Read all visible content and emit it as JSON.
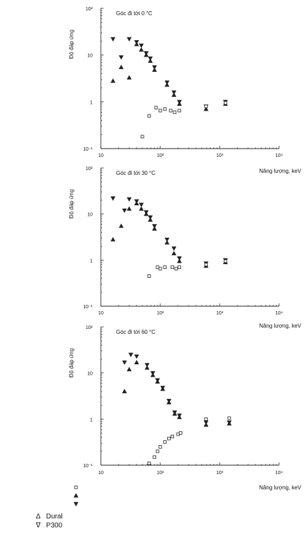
{
  "chart_data": [
    {
      "type": "scatter",
      "title": "Góc đi tới 0 °C",
      "ylabel": "Độ đáp ứng",
      "xlabel": "Năng lượng, keV",
      "xscale": "log",
      "yscale": "log",
      "xlim": [
        10,
        10000
      ],
      "ylim": [
        0.1,
        100
      ],
      "x_ticks": [
        "10",
        "10²",
        "10³",
        "10⁴"
      ],
      "y_ticks": [
        "10⁻¹",
        "1",
        "10",
        "10²"
      ],
      "series": [
        {
          "marker": "triangle-down",
          "points": [
            [
              16,
              22
            ],
            [
              22,
              9
            ],
            [
              30,
              22
            ],
            [
              40,
              19
            ],
            [
              48,
              16
            ],
            [
              58,
              11
            ],
            [
              68,
              8.5
            ],
            [
              80,
              5.5
            ],
            [
              130,
              2.6
            ],
            [
              170,
              1.6
            ],
            [
              210,
              1.0
            ],
            [
              590,
              0.8
            ],
            [
              1250,
              1.0
            ]
          ]
        },
        {
          "marker": "triangle-up",
          "points": [
            [
              16,
              2.8
            ],
            [
              22,
              5.5
            ],
            [
              30,
              3.3
            ],
            [
              40,
              17
            ],
            [
              48,
              13
            ],
            [
              58,
              10
            ],
            [
              68,
              7.5
            ],
            [
              80,
              4.8
            ],
            [
              130,
              2.3
            ],
            [
              170,
              1.4
            ],
            [
              210,
              0.9
            ],
            [
              590,
              0.7
            ],
            [
              1250,
              0.9
            ]
          ]
        },
        {
          "marker": "square",
          "points": [
            [
              50,
              0.18
            ],
            [
              65,
              0.5
            ],
            [
              85,
              0.75
            ],
            [
              100,
              0.65
            ],
            [
              120,
              0.7
            ],
            [
              150,
              0.65
            ],
            [
              175,
              0.6
            ],
            [
              210,
              0.65
            ],
            [
              590,
              0.8
            ],
            [
              1250,
              0.95
            ]
          ]
        }
      ]
    },
    {
      "type": "scatter",
      "title": "Góc đi tới 30 °C",
      "ylabel": "Độ đáp ứng",
      "xlabel": "Năng lượng, keV",
      "xscale": "log",
      "yscale": "log",
      "xlim": [
        10,
        10000
      ],
      "ylim": [
        0.1,
        100
      ],
      "x_ticks": [
        "10",
        "10²",
        "10³",
        "10⁴"
      ],
      "y_ticks": [
        "10⁻¹",
        "1",
        "10",
        "10²"
      ],
      "series": [
        {
          "marker": "triangle-down",
          "points": [
            [
              16,
              22
            ],
            [
              25,
              12
            ],
            [
              30,
              21
            ],
            [
              40,
              19
            ],
            [
              48,
              16
            ],
            [
              58,
              11
            ],
            [
              68,
              8.5
            ],
            [
              80,
              5.5
            ],
            [
              130,
              2.8
            ],
            [
              170,
              1.8
            ],
            [
              210,
              1.1
            ],
            [
              590,
              0.85
            ],
            [
              1250,
              1.0
            ]
          ]
        },
        {
          "marker": "triangle-up",
          "points": [
            [
              16,
              2.8
            ],
            [
              22,
              5.5
            ],
            [
              30,
              13
            ],
            [
              40,
              17
            ],
            [
              48,
              13
            ],
            [
              58,
              10
            ],
            [
              68,
              7.5
            ],
            [
              80,
              4.8
            ],
            [
              130,
              2.4
            ],
            [
              170,
              1.4
            ],
            [
              210,
              0.95
            ],
            [
              590,
              0.75
            ],
            [
              1250,
              0.9
            ]
          ]
        },
        {
          "marker": "square",
          "points": [
            [
              65,
              0.45
            ],
            [
              90,
              0.7
            ],
            [
              100,
              0.65
            ],
            [
              120,
              0.7
            ],
            [
              160,
              0.7
            ],
            [
              185,
              0.65
            ],
            [
              210,
              0.7
            ],
            [
              590,
              0.8
            ],
            [
              1250,
              0.95
            ]
          ]
        }
      ]
    },
    {
      "type": "scatter",
      "title": "Góc đi tới 60 °C",
      "ylabel": "Độ đáp ứng",
      "xlabel": "Năng lượng, keV",
      "xscale": "log",
      "yscale": "log",
      "xlim": [
        10,
        10000
      ],
      "ylim": [
        0.1,
        100
      ],
      "x_ticks": [
        "10",
        "10²",
        "10³",
        "10⁴"
      ],
      "y_ticks": [
        "10⁻¹",
        "1",
        "10",
        "10²"
      ],
      "series": [
        {
          "marker": "triangle-down",
          "points": [
            [
              25,
              17
            ],
            [
              32,
              25
            ],
            [
              40,
              23
            ],
            [
              60,
              15
            ],
            [
              75,
              10
            ],
            [
              90,
              7
            ],
            [
              110,
              4.8
            ],
            [
              140,
              2.5
            ],
            [
              175,
              1.4
            ],
            [
              210,
              1.2
            ],
            [
              590,
              0.85
            ],
            [
              1450,
              0.85
            ]
          ]
        },
        {
          "marker": "triangle-up",
          "points": [
            [
              25,
              4
            ],
            [
              30,
              12
            ],
            [
              40,
              17
            ],
            [
              60,
              13
            ],
            [
              75,
              9
            ],
            [
              90,
              6.5
            ],
            [
              110,
              4.5
            ],
            [
              140,
              2.3
            ],
            [
              175,
              1.3
            ],
            [
              210,
              1.1
            ],
            [
              590,
              0.75
            ],
            [
              1450,
              0.8
            ]
          ]
        },
        {
          "marker": "square",
          "points": [
            [
              65,
              0.11
            ],
            [
              80,
              0.15
            ],
            [
              90,
              0.2
            ],
            [
              100,
              0.25
            ],
            [
              120,
              0.32
            ],
            [
              140,
              0.38
            ],
            [
              160,
              0.42
            ],
            [
              200,
              0.47
            ],
            [
              220,
              0.5
            ],
            [
              590,
              1.0
            ],
            [
              1450,
              1.05
            ]
          ]
        }
      ]
    }
  ],
  "legend": {
    "markers": [
      "square",
      "triangle-up",
      "triangle-down"
    ],
    "rows": [
      {
        "symbol": "Δ",
        "label": "Dural"
      },
      {
        "symbol": "∇",
        "label": "P300"
      }
    ]
  }
}
